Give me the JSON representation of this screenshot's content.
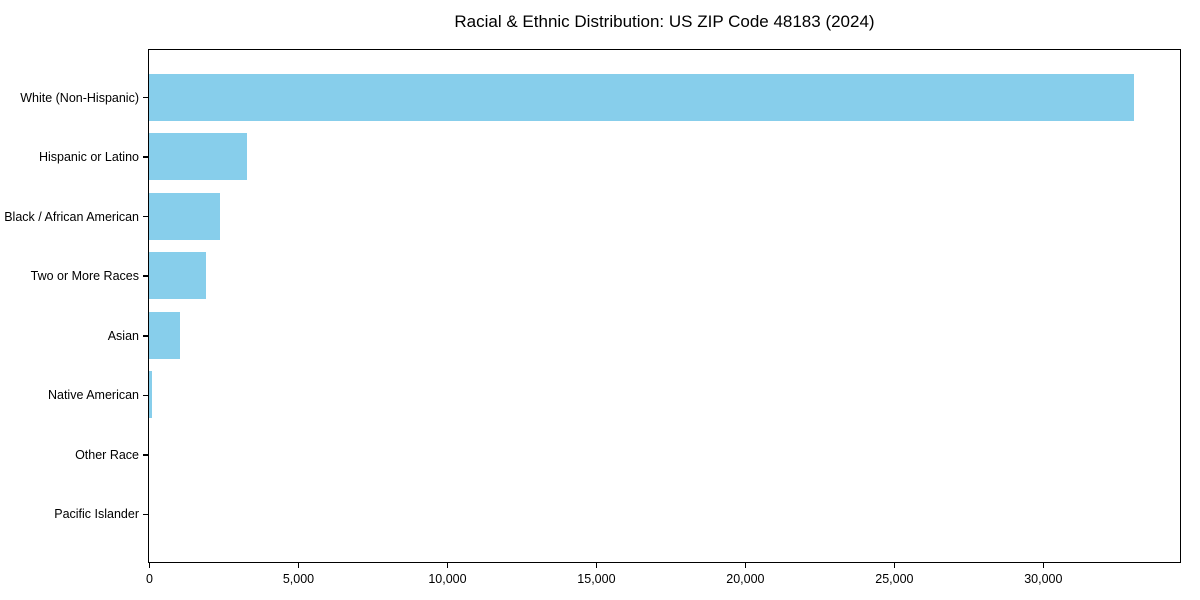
{
  "chart_data": {
    "type": "bar",
    "orientation": "horizontal",
    "title": "Racial & Ethnic Distribution: US ZIP Code 48183 (2024)",
    "categories": [
      "White (Non-Hispanic)",
      "Hispanic or Latino",
      "Black / African American",
      "Two or More Races",
      "Asian",
      "Native American",
      "Other Race",
      "Pacific Islander"
    ],
    "values": [
      33040,
      3290,
      2390,
      1910,
      1030,
      100,
      0,
      0
    ],
    "xlabel": "",
    "ylabel": "",
    "xlim": [
      0,
      34570
    ],
    "xticks": [
      0,
      5000,
      10000,
      15000,
      20000,
      25000,
      30000
    ],
    "xtick_labels": [
      "0",
      "5,000",
      "10,000",
      "15,000",
      "20,000",
      "25,000",
      "30,000"
    ],
    "bar_color": "#87CEEB",
    "axis_color": "#000000",
    "background_color": "#FFFFFF",
    "grid": false,
    "legend": "none",
    "categories_top_to_bottom": true
  }
}
